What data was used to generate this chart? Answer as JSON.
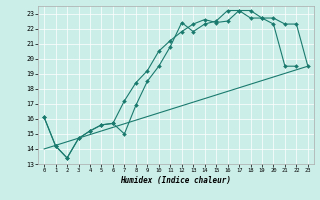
{
  "xlabel": "Humidex (Indice chaleur)",
  "bg_color": "#cceee8",
  "line_color": "#1a7a6e",
  "grid_color": "#ffffff",
  "xlim": [
    -0.5,
    23.5
  ],
  "ylim": [
    13,
    23.5
  ],
  "xticks": [
    0,
    1,
    2,
    3,
    4,
    5,
    6,
    7,
    8,
    9,
    10,
    11,
    12,
    13,
    14,
    15,
    16,
    17,
    18,
    19,
    20,
    21,
    22,
    23
  ],
  "yticks": [
    13,
    14,
    15,
    16,
    17,
    18,
    19,
    20,
    21,
    22,
    23
  ],
  "line1_x": [
    0,
    1,
    2,
    3,
    4,
    5,
    6,
    7,
    8,
    9,
    10,
    11,
    12,
    13,
    14,
    15,
    16,
    17,
    18,
    19,
    20,
    21,
    22
  ],
  "line1_y": [
    16.1,
    14.2,
    13.4,
    14.7,
    15.2,
    15.6,
    15.7,
    15.0,
    16.9,
    18.5,
    19.5,
    20.8,
    22.4,
    21.8,
    22.3,
    22.5,
    23.2,
    23.2,
    22.7,
    22.7,
    22.3,
    19.5,
    19.5
  ],
  "line2_x": [
    0,
    1,
    2,
    3,
    4,
    5,
    6,
    7,
    8,
    9,
    10,
    11,
    12,
    13,
    14,
    15,
    16,
    17,
    18,
    19,
    20,
    21,
    22,
    23
  ],
  "line2_y": [
    16.1,
    14.2,
    13.4,
    14.7,
    15.2,
    15.6,
    15.7,
    17.2,
    18.4,
    19.2,
    20.5,
    21.2,
    21.8,
    22.3,
    22.6,
    22.4,
    22.5,
    23.2,
    23.2,
    22.7,
    22.7,
    22.3,
    22.3,
    19.5
  ],
  "line3_x": [
    0,
    23
  ],
  "line3_y": [
    14.0,
    19.5
  ],
  "markersize": 2.0,
  "linewidth": 0.8
}
